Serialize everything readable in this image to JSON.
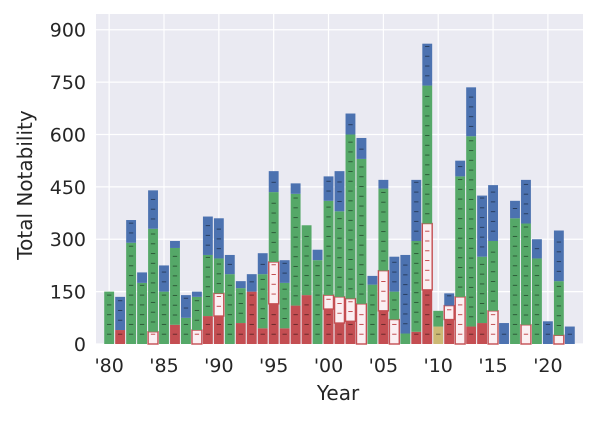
{
  "chart_data": {
    "type": "bar",
    "stacked": true,
    "xlabel": "Year",
    "ylabel": "Total Notability",
    "ylim": [
      0,
      945
    ],
    "yticks": [
      0,
      150,
      300,
      450,
      600,
      750,
      900
    ],
    "xlim": [
      1978.8,
      2023.2
    ],
    "xticks": [
      {
        "value": 1980,
        "label": "'80"
      },
      {
        "value": 1985,
        "label": "'85"
      },
      {
        "value": 1990,
        "label": "'90"
      },
      {
        "value": 1995,
        "label": "'95"
      },
      {
        "value": 2000,
        "label": "'00"
      },
      {
        "value": 2005,
        "label": "'05"
      },
      {
        "value": 2010,
        "label": "'10"
      },
      {
        "value": 2015,
        "label": "'15"
      },
      {
        "value": 2020,
        "label": "'20"
      }
    ],
    "background": "#eaeaf2",
    "grid": true,
    "colors": {
      "red": "#c44e52",
      "white": "#fbeff2",
      "gold": "#ccb974",
      "green": "#55a868",
      "blue": "#4c72b0"
    },
    "series_order": [
      "red",
      "white",
      "gold",
      "green",
      "blue"
    ],
    "bars": [
      {
        "year": 1980,
        "red": 0,
        "white": 0,
        "gold": 0,
        "green": 150,
        "blue": 0
      },
      {
        "year": 1981,
        "red": 40,
        "white": 0,
        "gold": 0,
        "green": 0,
        "blue": 95
      },
      {
        "year": 1982,
        "red": 0,
        "white": 0,
        "gold": 0,
        "green": 290,
        "blue": 65
      },
      {
        "year": 1983,
        "red": 0,
        "white": 0,
        "gold": 0,
        "green": 175,
        "blue": 30
      },
      {
        "year": 1984,
        "red": 0,
        "white": 35,
        "gold": 0,
        "green": 295,
        "blue": 110
      },
      {
        "year": 1985,
        "red": 0,
        "white": 0,
        "gold": 0,
        "green": 150,
        "blue": 75
      },
      {
        "year": 1986,
        "red": 55,
        "white": 0,
        "gold": 0,
        "green": 220,
        "blue": 20
      },
      {
        "year": 1987,
        "red": 0,
        "white": 0,
        "gold": 0,
        "green": 75,
        "blue": 65
      },
      {
        "year": 1988,
        "red": 0,
        "white": 40,
        "gold": 0,
        "green": 95,
        "blue": 15
      },
      {
        "year": 1989,
        "red": 80,
        "white": 0,
        "gold": 0,
        "green": 175,
        "blue": 110
      },
      {
        "year": 1990,
        "red": 80,
        "white": 65,
        "gold": 0,
        "green": 100,
        "blue": 115
      },
      {
        "year": 1991,
        "red": 0,
        "white": 0,
        "gold": 0,
        "green": 200,
        "blue": 55
      },
      {
        "year": 1992,
        "red": 60,
        "white": 0,
        "gold": 0,
        "green": 100,
        "blue": 20
      },
      {
        "year": 1993,
        "red": 150,
        "white": 0,
        "gold": 0,
        "green": 0,
        "blue": 50
      },
      {
        "year": 1994,
        "red": 45,
        "white": 0,
        "gold": 0,
        "green": 155,
        "blue": 60
      },
      {
        "year": 1995,
        "red": 115,
        "white": 120,
        "gold": 0,
        "green": 200,
        "blue": 60
      },
      {
        "year": 1996,
        "red": 45,
        "white": 0,
        "gold": 0,
        "green": 130,
        "blue": 65
      },
      {
        "year": 1997,
        "red": 110,
        "white": 0,
        "gold": 0,
        "green": 320,
        "blue": 30
      },
      {
        "year": 1998,
        "red": 140,
        "white": 0,
        "gold": 0,
        "green": 200,
        "blue": 0
      },
      {
        "year": 1999,
        "red": 0,
        "white": 0,
        "gold": 0,
        "green": 240,
        "blue": 30
      },
      {
        "year": 2000,
        "red": 100,
        "white": 40,
        "gold": 0,
        "green": 270,
        "blue": 70
      },
      {
        "year": 2001,
        "red": 60,
        "white": 75,
        "gold": 0,
        "green": 245,
        "blue": 115
      },
      {
        "year": 2002,
        "red": 65,
        "white": 65,
        "gold": 0,
        "green": 470,
        "blue": 60
      },
      {
        "year": 2003,
        "red": 0,
        "white": 115,
        "gold": 0,
        "green": 415,
        "blue": 60
      },
      {
        "year": 2004,
        "red": 0,
        "white": 0,
        "gold": 0,
        "green": 170,
        "blue": 25
      },
      {
        "year": 2005,
        "red": 95,
        "white": 115,
        "gold": 0,
        "green": 235,
        "blue": 25
      },
      {
        "year": 2006,
        "red": 0,
        "white": 70,
        "gold": 0,
        "green": 80,
        "blue": 100
      },
      {
        "year": 2007,
        "red": 0,
        "white": 0,
        "gold": 0,
        "green": 30,
        "blue": 225
      },
      {
        "year": 2008,
        "red": 35,
        "white": 0,
        "gold": 0,
        "green": 260,
        "blue": 175
      },
      {
        "year": 2009,
        "red": 155,
        "white": 190,
        "gold": 0,
        "green": 395,
        "blue": 120
      },
      {
        "year": 2010,
        "red": 0,
        "white": 0,
        "gold": 50,
        "green": 45,
        "blue": 0
      },
      {
        "year": 2011,
        "red": 70,
        "white": 40,
        "gold": 0,
        "green": 0,
        "blue": 35
      },
      {
        "year": 2012,
        "red": 0,
        "white": 135,
        "gold": 0,
        "green": 345,
        "blue": 45
      },
      {
        "year": 2013,
        "red": 50,
        "white": 0,
        "gold": 0,
        "green": 545,
        "blue": 140
      },
      {
        "year": 2014,
        "red": 60,
        "white": 0,
        "gold": 0,
        "green": 190,
        "blue": 175
      },
      {
        "year": 2015,
        "red": 0,
        "white": 95,
        "gold": 0,
        "green": 200,
        "blue": 160
      },
      {
        "year": 2016,
        "red": 0,
        "white": 0,
        "gold": 0,
        "green": 0,
        "blue": 60
      },
      {
        "year": 2017,
        "red": 0,
        "white": 0,
        "gold": 0,
        "green": 360,
        "blue": 50
      },
      {
        "year": 2018,
        "red": 0,
        "white": 55,
        "gold": 0,
        "green": 290,
        "blue": 125
      },
      {
        "year": 2019,
        "red": 0,
        "white": 0,
        "gold": 0,
        "green": 245,
        "blue": 55
      },
      {
        "year": 2020,
        "red": 0,
        "white": 0,
        "gold": 0,
        "green": 0,
        "blue": 65
      },
      {
        "year": 2021,
        "red": 0,
        "white": 25,
        "gold": 0,
        "green": 155,
        "blue": 145
      },
      {
        "year": 2022,
        "red": 0,
        "white": 0,
        "gold": 0,
        "green": 0,
        "blue": 50
      }
    ]
  }
}
